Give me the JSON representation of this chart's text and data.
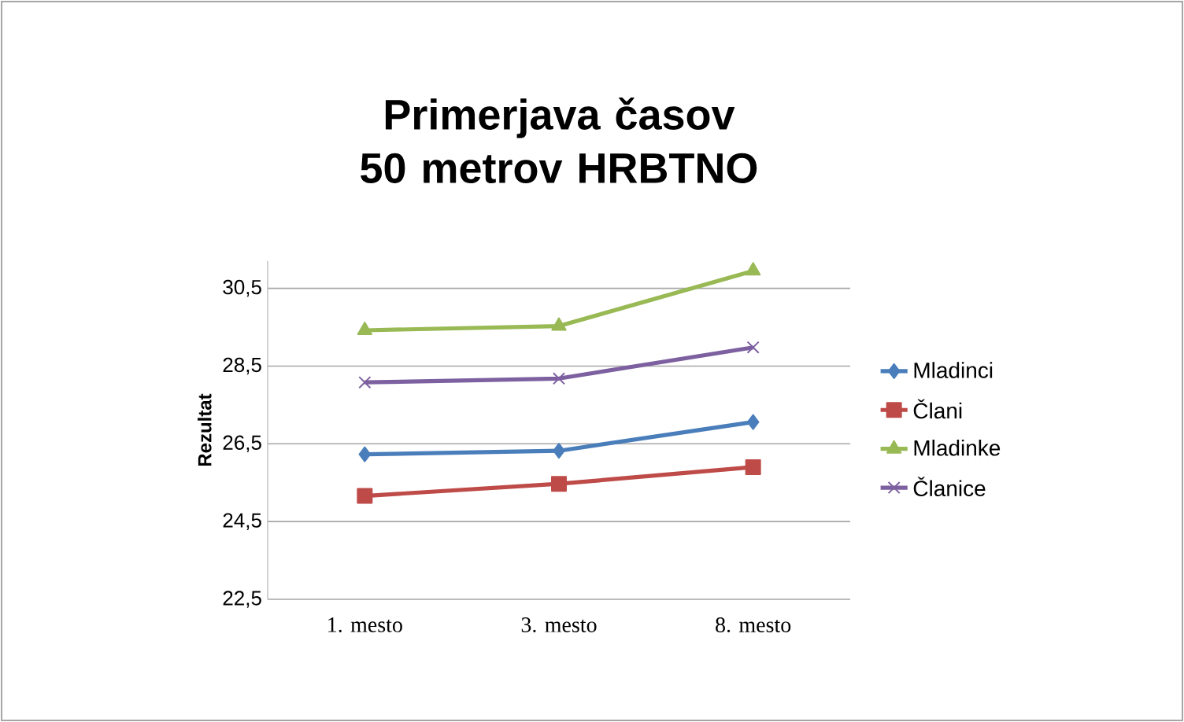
{
  "chart_data": {
    "type": "line",
    "title": "Primerjava časov 50 metrov HRBTNO",
    "ylabel": "Rezultat",
    "categories": [
      "1. mesto",
      "3. mesto",
      "8. mesto"
    ],
    "series": [
      {
        "name": "Mladinci",
        "color": "#4a7ebb",
        "marker": "diamond",
        "values": [
          26.23,
          26.32,
          27.06
        ]
      },
      {
        "name": "Člani",
        "color": "#be4b48",
        "marker": "square",
        "values": [
          25.16,
          25.47,
          25.9
        ]
      },
      {
        "name": "Mladinke",
        "color": "#98b954",
        "marker": "triangle",
        "values": [
          29.42,
          29.53,
          30.95
        ]
      },
      {
        "name": "Članice",
        "color": "#7d60a0",
        "marker": "cross",
        "values": [
          28.08,
          28.18,
          28.98
        ]
      }
    ],
    "ylim": [
      22.5,
      31.2
    ],
    "yticks": [
      {
        "value": 22.5,
        "label": "22,5"
      },
      {
        "value": 24.5,
        "label": "24,5"
      },
      {
        "value": 26.5,
        "label": "26,5"
      },
      {
        "value": 28.5,
        "label": "28,5"
      },
      {
        "value": 30.5,
        "label": "30,5"
      }
    ],
    "grid": "y",
    "legend": "right",
    "line_style": "solid"
  }
}
